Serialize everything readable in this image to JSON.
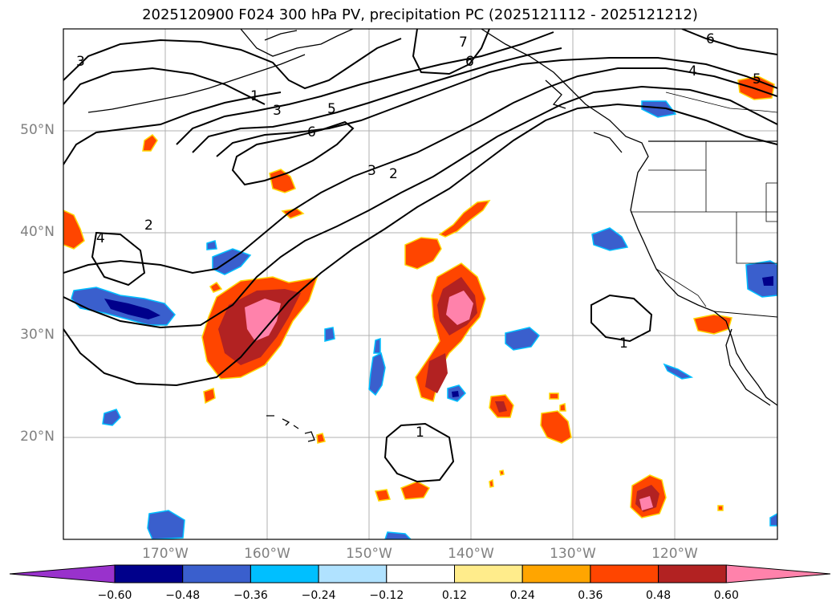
{
  "title": "2025120900 F024 300 hPa PV, precipitation PC (2025121112 - 2025121212)",
  "lat_labels": [
    "50°N",
    "40°N",
    "30°N",
    "20°N"
  ],
  "lon_labels": [
    "170°W",
    "160°W",
    "150°W",
    "140°W",
    "130°W",
    "120°W"
  ],
  "contour_labels": [
    "3",
    "1",
    "3",
    "5",
    "6",
    "2",
    "4",
    "3",
    "2",
    "7",
    "6",
    "4",
    "6",
    "5",
    "1",
    "1"
  ],
  "colorbar": {
    "colors": [
      "#9932CC",
      "#00008B",
      "#3A5FCD",
      "#00BFFF",
      "#B0E2FF",
      "#FFFFFF",
      "#FFEC8B",
      "#FFA500",
      "#FF4500",
      "#B22222",
      "#FF82AB"
    ],
    "ticks": [
      "−0.60",
      "−0.48",
      "−0.36",
      "−0.24",
      "−0.12",
      "0.12",
      "0.24",
      "0.36",
      "0.48",
      "0.60"
    ]
  }
}
